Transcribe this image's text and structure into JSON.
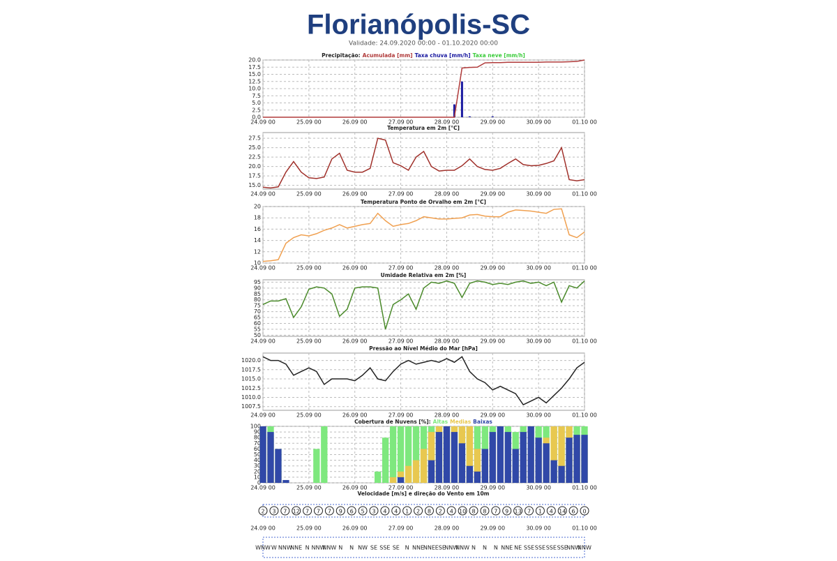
{
  "title": "Florianópolis-SC",
  "subtitle": "Validade: 24.09.2020 00:00 - 01.10.2020 00:00",
  "chart_data": [
    {
      "type": "line",
      "title": "Precipitação:",
      "legend": "title",
      "grid": true,
      "x": [
        0,
        4,
        8,
        12,
        16,
        20,
        24,
        28,
        32,
        36,
        40,
        44,
        48,
        52,
        56,
        60,
        64,
        68,
        72,
        76,
        80,
        84,
        88,
        92,
        96,
        100,
        104,
        108,
        112,
        116,
        120,
        124,
        128,
        132,
        136,
        140,
        144,
        148,
        152,
        156,
        160,
        164,
        168
      ],
      "xlim": [
        0,
        168
      ],
      "xticks": [
        {
          "value": 0,
          "label": "24.09 00"
        },
        {
          "value": 24,
          "label": "25.09 00"
        },
        {
          "value": 48,
          "label": "26.09 00"
        },
        {
          "value": 72,
          "label": "27.09 00"
        },
        {
          "value": 96,
          "label": "28.09 00"
        },
        {
          "value": 120,
          "label": "29.09 00"
        },
        {
          "value": 144,
          "label": "30.09 00"
        },
        {
          "value": 168,
          "label": "01.10 00"
        }
      ],
      "ylim": [
        0,
        20
      ],
      "yticks": [
        {
          "value": 0,
          "label": "0.0"
        },
        2.5,
        {
          "value": 5,
          "label": "5.0"
        },
        7.5,
        {
          "value": 10,
          "label": "10.0"
        },
        12.5,
        {
          "value": 15,
          "label": "15.0"
        },
        17.5,
        {
          "value": 20,
          "label": "20.0"
        }
      ],
      "series": [
        {
          "name": "Acumulada [mm]",
          "color": "#b03a3a",
          "type": "line",
          "values": [
            0,
            0,
            0,
            0,
            0,
            0,
            0,
            0,
            0,
            0,
            0,
            0,
            0,
            0,
            0,
            0,
            0,
            0,
            0,
            0,
            0,
            0,
            0,
            0,
            0,
            0,
            17.2,
            17.4,
            17.5,
            19.0,
            19.1,
            19.1,
            19.2,
            19.2,
            19.2,
            19.2,
            19.2,
            19.3,
            19.3,
            19.3,
            19.4,
            19.5,
            20.0
          ]
        },
        {
          "name": "Taxa chuva [mm/h]",
          "color": "#1a1aa0",
          "type": "bar",
          "values": [
            0,
            0,
            0,
            0,
            0,
            0,
            0,
            0,
            0,
            0,
            0,
            0,
            0,
            0,
            0,
            0,
            0,
            0,
            0,
            0,
            0,
            0,
            0,
            0,
            0,
            4.5,
            12.5,
            0.3,
            0,
            0,
            0.3,
            0,
            0,
            0,
            0,
            0,
            0,
            0,
            0,
            0,
            0,
            0,
            0
          ]
        },
        {
          "name": "Taxa neve [mm/h]",
          "color": "#3ccc3c",
          "type": "bar",
          "values": [
            0,
            0,
            0,
            0,
            0,
            0,
            0,
            0,
            0,
            0,
            0,
            0,
            0,
            0,
            0,
            0,
            0,
            0,
            0,
            0,
            0,
            0,
            0,
            0,
            0,
            0,
            0,
            0,
            0,
            0,
            0,
            0,
            0,
            0,
            0,
            0,
            0,
            0,
            0,
            0,
            0,
            0,
            0
          ]
        }
      ]
    },
    {
      "type": "line",
      "title": "Temperatura em 2m [°C]",
      "grid": true,
      "color": "#a0302a",
      "x": [
        0,
        4,
        8,
        12,
        16,
        20,
        24,
        28,
        32,
        36,
        40,
        44,
        48,
        52,
        56,
        60,
        64,
        68,
        72,
        76,
        80,
        84,
        88,
        92,
        96,
        100,
        104,
        108,
        112,
        116,
        120,
        124,
        128,
        132,
        136,
        140,
        144,
        148,
        152,
        156,
        160,
        164,
        168
      ],
      "xlim": [
        0,
        168
      ],
      "xticks": [
        {
          "value": 0,
          "label": "24.09 00"
        },
        {
          "value": 24,
          "label": "25.09 00"
        },
        {
          "value": 48,
          "label": "26.09 00"
        },
        {
          "value": 72,
          "label": "27.09 00"
        },
        {
          "value": 96,
          "label": "28.09 00"
        },
        {
          "value": 120,
          "label": "29.09 00"
        },
        {
          "value": 144,
          "label": "30.09 00"
        },
        {
          "value": 168,
          "label": "01.10 00"
        }
      ],
      "ylim": [
        14,
        29
      ],
      "yticks": [
        {
          "value": 15,
          "label": "15.0"
        },
        17.5,
        {
          "value": 20,
          "label": "20.0"
        },
        22.5,
        {
          "value": 25,
          "label": "25.0"
        },
        27.5
      ],
      "values": [
        14.5,
        14.3,
        14.6,
        18.5,
        21.3,
        18.5,
        17.0,
        16.8,
        17.2,
        22.0,
        23.5,
        19.0,
        18.5,
        18.5,
        19.5,
        27.5,
        27.0,
        21.0,
        20.2,
        19.0,
        22.5,
        24.0,
        20.0,
        18.8,
        19.0,
        19.0,
        20.2,
        22.0,
        20.0,
        19.2,
        19.0,
        19.5,
        20.8,
        22.0,
        20.5,
        20.2,
        20.3,
        20.8,
        21.5,
        25.0,
        16.5,
        16.2,
        16.5
      ]
    },
    {
      "type": "line",
      "title": "Temperatura Ponto de Orvalho em 2m [°C]",
      "grid": true,
      "color": "#f0a050",
      "x": [
        0,
        4,
        8,
        12,
        16,
        20,
        24,
        28,
        32,
        36,
        40,
        44,
        48,
        52,
        56,
        60,
        64,
        68,
        72,
        76,
        80,
        84,
        88,
        92,
        96,
        100,
        104,
        108,
        112,
        116,
        120,
        124,
        128,
        132,
        136,
        140,
        144,
        148,
        152,
        156,
        160,
        164,
        168
      ],
      "xlim": [
        0,
        168
      ],
      "xticks": [
        {
          "value": 0,
          "label": "24.09 00"
        },
        {
          "value": 24,
          "label": "25.09 00"
        },
        {
          "value": 48,
          "label": "26.09 00"
        },
        {
          "value": 72,
          "label": "27.09 00"
        },
        {
          "value": 96,
          "label": "28.09 00"
        },
        {
          "value": 120,
          "label": "29.09 00"
        },
        {
          "value": 144,
          "label": "30.09 00"
        },
        {
          "value": 168,
          "label": "01.10 00"
        }
      ],
      "ylim": [
        10,
        20
      ],
      "yticks": [
        10,
        12,
        14,
        16,
        18,
        20
      ],
      "values": [
        10.3,
        10.4,
        10.6,
        13.5,
        14.5,
        15.0,
        14.8,
        15.2,
        15.8,
        16.2,
        16.8,
        16.2,
        16.5,
        16.8,
        17.0,
        18.8,
        17.5,
        16.5,
        16.8,
        17.0,
        17.5,
        18.2,
        18.0,
        17.8,
        17.8,
        17.9,
        18.0,
        18.5,
        18.6,
        18.3,
        18.2,
        18.2,
        19.0,
        19.4,
        19.3,
        19.2,
        19.0,
        18.8,
        19.5,
        19.6,
        15.0,
        14.5,
        15.5
      ]
    },
    {
      "type": "line",
      "title": "Umidade Relativa em 2m [%]",
      "grid": true,
      "color": "#4a8a2a",
      "x": [
        0,
        4,
        8,
        12,
        16,
        20,
        24,
        28,
        32,
        36,
        40,
        44,
        48,
        52,
        56,
        60,
        64,
        68,
        72,
        76,
        80,
        84,
        88,
        92,
        96,
        100,
        104,
        108,
        112,
        116,
        120,
        124,
        128,
        132,
        136,
        140,
        144,
        148,
        152,
        156,
        160,
        164,
        168
      ],
      "xlim": [
        0,
        168
      ],
      "xticks": [
        {
          "value": 0,
          "label": "24.09 00"
        },
        {
          "value": 24,
          "label": "25.09 00"
        },
        {
          "value": 48,
          "label": "26.09 00"
        },
        {
          "value": 72,
          "label": "27.09 00"
        },
        {
          "value": 96,
          "label": "28.09 00"
        },
        {
          "value": 120,
          "label": "29.09 00"
        },
        {
          "value": 144,
          "label": "30.09 00"
        },
        {
          "value": 168,
          "label": "01.10 00"
        }
      ],
      "ylim": [
        49,
        97
      ],
      "yticks": [
        50,
        55,
        60,
        65,
        70,
        75,
        80,
        85,
        90,
        95
      ],
      "values": [
        76,
        79,
        79,
        81,
        65,
        74,
        89,
        91,
        90,
        85,
        66,
        72,
        90,
        91,
        91,
        90,
        55,
        76,
        80,
        85,
        72,
        90,
        95,
        94,
        96,
        94,
        82,
        94,
        96,
        95,
        93,
        94,
        93,
        95,
        96,
        94,
        95,
        92,
        95,
        78,
        92,
        90,
        96
      ]
    },
    {
      "type": "line",
      "title": "Pressão ao Nível Médio do Mar [hPa]",
      "grid": true,
      "color": "#222222",
      "x": [
        0,
        4,
        8,
        12,
        16,
        20,
        24,
        28,
        32,
        36,
        40,
        44,
        48,
        52,
        56,
        60,
        64,
        68,
        72,
        76,
        80,
        84,
        88,
        92,
        96,
        100,
        104,
        108,
        112,
        116,
        120,
        124,
        128,
        132,
        136,
        140,
        144,
        148,
        152,
        156,
        160,
        164,
        168
      ],
      "xlim": [
        0,
        168
      ],
      "xticks": [
        {
          "value": 0,
          "label": "24.09 00"
        },
        {
          "value": 24,
          "label": "25.09 00"
        },
        {
          "value": 48,
          "label": "26.09 00"
        },
        {
          "value": 72,
          "label": "27.09 00"
        },
        {
          "value": 96,
          "label": "28.09 00"
        },
        {
          "value": 120,
          "label": "29.09 00"
        },
        {
          "value": 144,
          "label": "30.09 00"
        },
        {
          "value": 168,
          "label": "01.10 00"
        }
      ],
      "ylim": [
        1006.5,
        1022
      ],
      "yticks": [
        1007.5,
        {
          "value": 1010,
          "label": "1010.0"
        },
        1012.5,
        {
          "value": 1015,
          "label": "1015.0"
        },
        1017.5,
        {
          "value": 1020,
          "label": "1020.0"
        }
      ],
      "values": [
        1021,
        1020,
        1020,
        1019,
        1016,
        1017,
        1018,
        1017,
        1013.5,
        1015,
        1015,
        1015,
        1014.5,
        1016,
        1018,
        1015,
        1014.5,
        1017,
        1019,
        1020,
        1019,
        1019.5,
        1020,
        1019.5,
        1020.5,
        1019.5,
        1021,
        1017,
        1015,
        1014,
        1012,
        1013,
        1012,
        1011,
        1008,
        1009,
        1010,
        1008.5,
        1010.5,
        1012.5,
        1015,
        1018,
        1019.5
      ]
    },
    {
      "type": "bar",
      "title": "Cobertura de Nuvens [%]:",
      "legend": "title",
      "grid": true,
      "x": [
        0,
        4,
        8,
        12,
        16,
        20,
        24,
        28,
        32,
        36,
        40,
        44,
        48,
        52,
        56,
        60,
        64,
        68,
        72,
        76,
        80,
        84,
        88,
        92,
        96,
        100,
        104,
        108,
        112,
        116,
        120,
        124,
        128,
        132,
        136,
        140,
        144,
        148,
        152,
        156,
        160,
        164,
        168
      ],
      "xlim": [
        0,
        168
      ],
      "xticks": [
        {
          "value": 0,
          "label": "24.09 00"
        },
        {
          "value": 24,
          "label": "25.09 00"
        },
        {
          "value": 48,
          "label": "26.09 00"
        },
        {
          "value": 72,
          "label": "27.09 00"
        },
        {
          "value": 96,
          "label": "28.09 00"
        },
        {
          "value": 120,
          "label": "29.09 00"
        },
        {
          "value": 144,
          "label": "30.09 00"
        },
        {
          "value": 168,
          "label": "01.10 00"
        }
      ],
      "ylim": [
        0,
        100
      ],
      "yticks": [
        0,
        10,
        20,
        30,
        40,
        50,
        60,
        70,
        80,
        90,
        100
      ],
      "series": [
        {
          "name": "Altas",
          "color": "#7ee87e",
          "values": [
            100,
            100,
            60,
            0,
            0,
            0,
            0,
            60,
            100,
            0,
            0,
            0,
            0,
            0,
            0,
            20,
            80,
            100,
            100,
            100,
            100,
            100,
            100,
            100,
            100,
            100,
            100,
            100,
            100,
            100,
            100,
            100,
            100,
            90,
            100,
            100,
            100,
            100,
            100,
            100,
            100,
            100,
            100
          ]
        },
        {
          "name": "Medias",
          "color": "#e8c850",
          "values": [
            100,
            80,
            20,
            0,
            0,
            0,
            0,
            0,
            0,
            0,
            0,
            0,
            0,
            0,
            0,
            0,
            0,
            10,
            20,
            30,
            40,
            60,
            90,
            100,
            100,
            100,
            100,
            100,
            60,
            50,
            70,
            80,
            40,
            30,
            50,
            60,
            60,
            80,
            100,
            100,
            100,
            80,
            60
          ]
        },
        {
          "name": "Baixas",
          "color": "#3048a8",
          "values": [
            100,
            90,
            60,
            5,
            0,
            0,
            0,
            0,
            0,
            0,
            0,
            0,
            0,
            0,
            0,
            0,
            0,
            0,
            10,
            0,
            0,
            0,
            40,
            90,
            100,
            90,
            70,
            30,
            20,
            60,
            90,
            100,
            90,
            60,
            90,
            100,
            80,
            70,
            40,
            30,
            80,
            85,
            85
          ]
        }
      ]
    },
    {
      "type": "wind",
      "title": "Velocidade [m/s] e direção do Vento em 10m",
      "xlim": [
        0,
        168
      ],
      "xticks": [
        {
          "value": 0,
          "label": "24.09 00"
        },
        {
          "value": 24,
          "label": "25.09 00"
        },
        {
          "value": 48,
          "label": "26.09 00"
        },
        {
          "value": 72,
          "label": "27.09 00"
        },
        {
          "value": 96,
          "label": "28.09 00"
        },
        {
          "value": 120,
          "label": "29.09 00"
        },
        {
          "value": 144,
          "label": "30.09 00"
        },
        {
          "value": 168,
          "label": "01.10 00"
        }
      ],
      "values": [
        2,
        3,
        7,
        12,
        7,
        7,
        7,
        9,
        6,
        5,
        3,
        4,
        4,
        1,
        2,
        8,
        2,
        4,
        10,
        8,
        8,
        7,
        9,
        13,
        7,
        1,
        4,
        14,
        6,
        0
      ],
      "directions": [
        "WNW",
        "W",
        "NNW",
        "NNE",
        "N",
        "NNW",
        "NNW",
        "N",
        "N",
        "NW",
        "SE",
        "SSE",
        "SE",
        "N",
        "NNE",
        "NNE",
        "ESE",
        "NNW",
        "NNW",
        "N",
        "N",
        "N",
        "NNE",
        "NE",
        "SSE",
        "SSE",
        "SSE",
        "SSE",
        "NNW",
        "NNW"
      ]
    }
  ]
}
